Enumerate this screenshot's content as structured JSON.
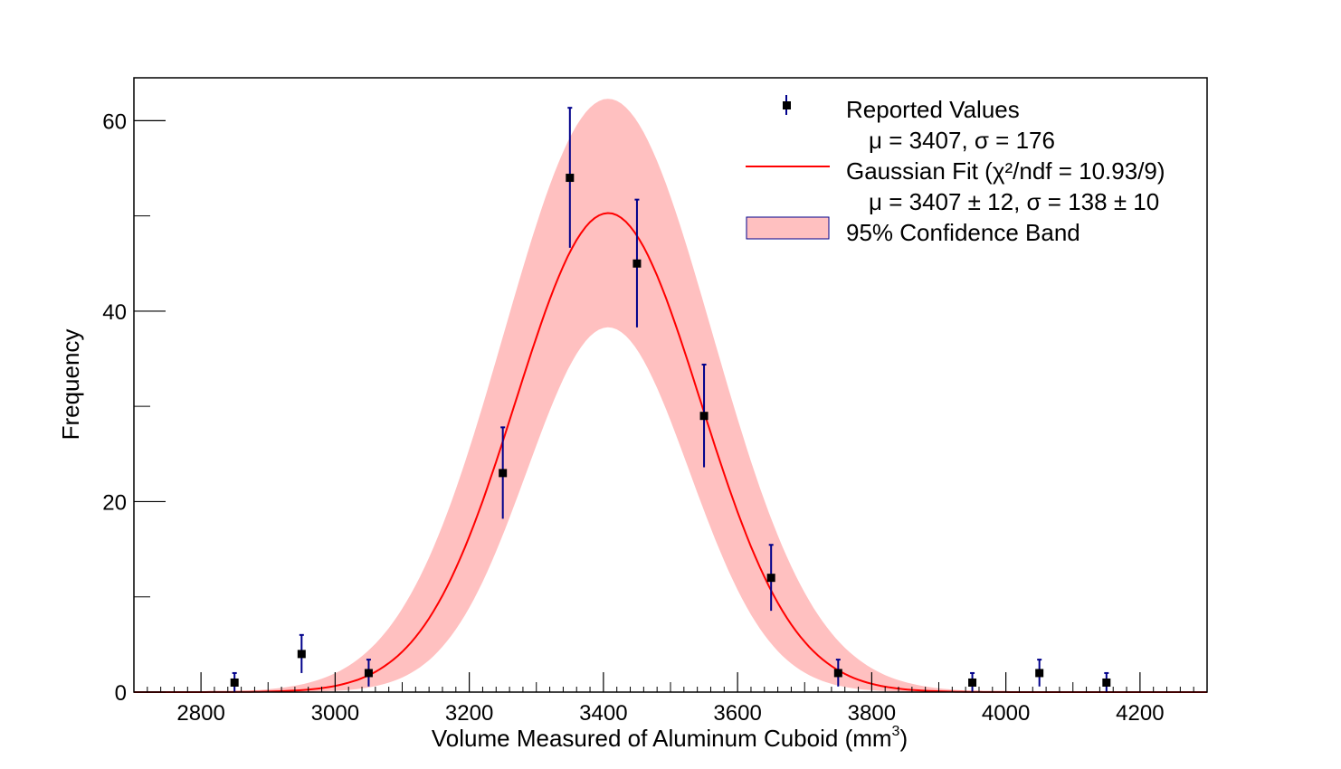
{
  "chart_data": {
    "type": "scatter",
    "xlabel": "Volume Measured of Aluminum Cuboid (mm",
    "xlabel_sup": "3",
    "xlabel_end": ")",
    "ylabel": "Frequency",
    "xlim": [
      2700,
      4300
    ],
    "ylim": [
      0,
      64.5
    ],
    "x_ticks": [
      2800,
      3000,
      3200,
      3400,
      3600,
      3800,
      4000,
      4200
    ],
    "x_tick_labels": [
      "2800",
      "3000",
      "3200",
      "3400",
      "3600",
      "3800",
      "4000",
      "4200"
    ],
    "y_ticks": [
      0,
      20,
      40,
      60
    ],
    "y_tick_labels": [
      "0",
      "20",
      "40",
      "60"
    ],
    "grid": false,
    "legend_position": "top-right",
    "series": [
      {
        "name": "Reported Values",
        "kind": "points_with_errors",
        "x": [
          2850,
          2950,
          3050,
          3250,
          3350,
          3450,
          3550,
          3650,
          3750,
          3950,
          4050,
          4150
        ],
        "y": [
          1,
          4,
          2,
          23,
          54,
          45,
          29,
          12,
          2,
          1,
          2,
          1
        ],
        "yerr": [
          1,
          2,
          1.41,
          4.8,
          7.35,
          6.71,
          5.39,
          3.46,
          1.41,
          1,
          1.41,
          1
        ],
        "color": "#000000",
        "error_color": "#00008b"
      },
      {
        "name": "Gaussian Fit",
        "kind": "gaussian_curve",
        "amplitude": 50.3,
        "mu": 3407,
        "sigma": 138,
        "color": "#ff0000"
      },
      {
        "name": "95% Confidence Band",
        "kind": "band",
        "upper_amplitude": 62.3,
        "upper_sigma": 155,
        "lower_amplitude": 38.3,
        "lower_sigma": 121,
        "mu": 3407,
        "color": "#ffc0c0"
      }
    ],
    "legend": [
      {
        "symbol": "marker",
        "label": "Reported Values",
        "sub": "μ = 3407, σ = 176"
      },
      {
        "symbol": "line",
        "label": "Gaussian Fit (χ²/ndf = 10.93/9)",
        "sub": "μ = 3407 ± 12, σ = 138 ± 10"
      },
      {
        "symbol": "box",
        "label": "95% Confidence Band",
        "sub": ""
      }
    ]
  }
}
